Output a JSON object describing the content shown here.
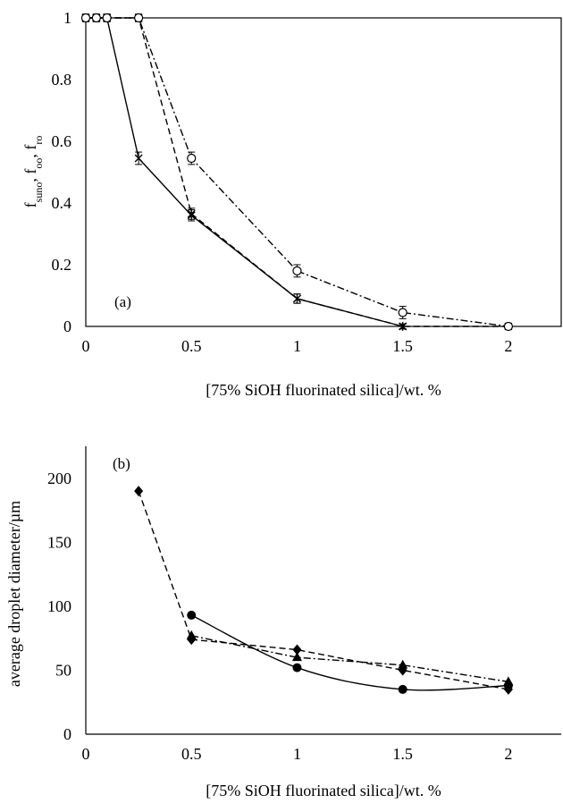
{
  "figure": {
    "panel_a_label": "(a)",
    "panel_b_label": "(b)"
  },
  "chart_data": [
    {
      "id": "a",
      "type": "line",
      "panel_label": "(a)",
      "xlabel": "[75% SiOH fluorinated silica]/wt. %",
      "ylabel": {
        "parts": [
          {
            "text": "f",
            "sub": "suno"
          },
          {
            "text": ", f",
            "sub": "oo"
          },
          {
            "text": ", f",
            "sub": "ro"
          }
        ]
      },
      "xlim": [
        0,
        2.25
      ],
      "ylim": [
        0,
        1
      ],
      "x_ticks": [
        0,
        0.5,
        1,
        1.5,
        2
      ],
      "x_tick_labels": [
        "0",
        "0.5",
        "1",
        "1.5",
        "2"
      ],
      "y_ticks": [
        0,
        0.2,
        0.4,
        0.6,
        0.8,
        1
      ],
      "y_tick_labels": [
        "0",
        "0.2",
        "0.4",
        "0.6",
        "0.8",
        "1"
      ],
      "grid": false,
      "series": [
        {
          "id": "solid-cross",
          "line": "solid",
          "marker": "cross",
          "x": [
            0,
            0.05,
            0.1,
            0.25,
            0.5,
            1,
            1.5
          ],
          "y": [
            1,
            1,
            1,
            0.545,
            0.36,
            0.09,
            0
          ],
          "err": [
            0.012,
            0.012,
            0.012,
            0.02,
            0.018,
            0.015,
            0.008
          ]
        },
        {
          "id": "dashed-star",
          "line": "dashed",
          "marker": "star",
          "x": [
            0,
            0.05,
            0.1,
            0.25,
            0.5,
            1,
            1.5,
            2
          ],
          "y": [
            1,
            1,
            1,
            1,
            0.365,
            0.09,
            0,
            0
          ],
          "err": [
            0.012,
            0.012,
            0.012,
            0.012,
            0.018,
            0.015,
            0.008,
            0.006
          ]
        },
        {
          "id": "dashdot-circle",
          "line": "dashdot",
          "marker": "circle-open",
          "x": [
            0,
            0.05,
            0.1,
            0.25,
            0.5,
            1,
            1.5,
            2
          ],
          "y": [
            1,
            1,
            1,
            1,
            0.545,
            0.18,
            0.045,
            0
          ],
          "err": [
            0.012,
            0.012,
            0.012,
            0.012,
            0.02,
            0.02,
            0.02,
            0.006
          ]
        }
      ]
    },
    {
      "id": "b",
      "type": "line",
      "panel_label": "(b)",
      "xlabel": "[75% SiOH fluorinated silica]/wt. %",
      "ylabel": "average droplet diameter/µm",
      "xlim": [
        0,
        2.25
      ],
      "ylim": [
        0,
        225
      ],
      "x_ticks": [
        0,
        0.5,
        1,
        1.5,
        2
      ],
      "x_tick_labels": [
        "0",
        "0.5",
        "1",
        "1.5",
        "2"
      ],
      "y_ticks": [
        0,
        50,
        100,
        150,
        200
      ],
      "y_tick_labels": [
        "0",
        "50",
        "100",
        "150",
        "200"
      ],
      "grid": false,
      "series": [
        {
          "id": "solid-circle",
          "line": "solid-smooth",
          "marker": "circle-filled",
          "x": [
            0.5,
            1,
            1.5,
            2
          ],
          "y": [
            93,
            52,
            35,
            38
          ]
        },
        {
          "id": "dashed-diamond",
          "line": "dashed",
          "marker": "diamond",
          "x": [
            0.25,
            0.5,
            1,
            1.5,
            2
          ],
          "y": [
            190,
            74,
            66,
            50,
            35
          ]
        },
        {
          "id": "dashdot-triangle",
          "line": "dashdot",
          "marker": "triangle",
          "x": [
            0.5,
            1,
            1.5,
            2
          ],
          "y": [
            77,
            60,
            54,
            41
          ]
        }
      ]
    }
  ]
}
